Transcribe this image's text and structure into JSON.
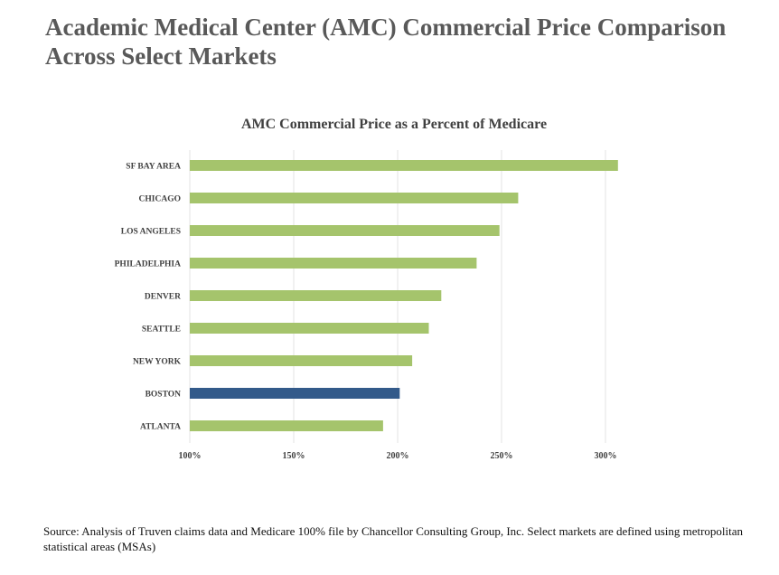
{
  "page": {
    "title": "Academic Medical Center (AMC) Commercial Price Comparison Across Select Markets",
    "source_note": "Source: Analysis of Truven claims data and Medicare 100% file by Chancellor Consulting Group, Inc.  Select markets are defined using metropolitan statistical areas (MSAs)"
  },
  "chart_data": {
    "type": "bar",
    "orientation": "horizontal",
    "title": "AMC Commercial Price as a Percent of Medicare",
    "categories": [
      "SF BAY AREA",
      "CHICAGO",
      "LOS ANGELES",
      "PHILADELPHIA",
      "DENVER",
      "SEATTLE",
      "NEW YORK",
      "BOSTON",
      "ATLANTA"
    ],
    "values": [
      306,
      258,
      249,
      238,
      221,
      215,
      207,
      201,
      193
    ],
    "highlight_category": "BOSTON",
    "colors": {
      "bar": "#A5C46C",
      "highlight": "#335A8A",
      "grid": "#E3E3E3"
    },
    "xlim": [
      100,
      300
    ],
    "xticks": [
      100,
      150,
      200,
      250,
      300
    ],
    "xtick_labels": [
      "100%",
      "150%",
      "200%",
      "250%",
      "300%"
    ],
    "grid": "vertical",
    "xlabel": "",
    "ylabel": ""
  }
}
